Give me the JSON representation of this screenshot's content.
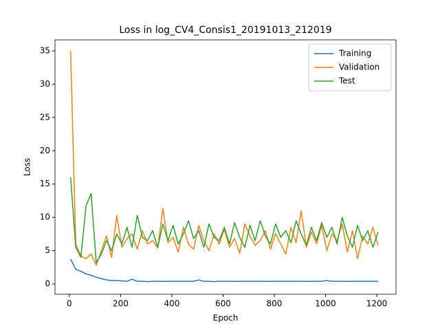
{
  "chart_data": {
    "type": "line",
    "title": "Loss in log_CV4_Consis1_20191013_212019",
    "xlabel": "Epoch",
    "ylabel": "Loss",
    "x": [
      5,
      25,
      45,
      65,
      85,
      105,
      125,
      145,
      165,
      185,
      205,
      225,
      245,
      265,
      285,
      305,
      325,
      345,
      365,
      385,
      405,
      425,
      445,
      465,
      485,
      505,
      525,
      545,
      565,
      585,
      605,
      625,
      645,
      665,
      685,
      705,
      725,
      745,
      765,
      785,
      805,
      825,
      845,
      865,
      885,
      905,
      925,
      945,
      965,
      985,
      1005,
      1025,
      1045,
      1065,
      1085,
      1105,
      1125,
      1145,
      1165,
      1185,
      1205
    ],
    "series": [
      {
        "name": "Training",
        "color": "#1f77b4",
        "values": [
          3.7,
          2.2,
          1.9,
          1.5,
          1.3,
          1.0,
          0.8,
          0.6,
          0.5,
          0.5,
          0.45,
          0.4,
          0.7,
          0.4,
          0.4,
          0.35,
          0.4,
          0.4,
          0.38,
          0.4,
          0.4,
          0.4,
          0.4,
          0.4,
          0.4,
          0.6,
          0.4,
          0.4,
          0.35,
          0.4,
          0.4,
          0.4,
          0.38,
          0.4,
          0.4,
          0.4,
          0.4,
          0.4,
          0.4,
          0.38,
          0.4,
          0.4,
          0.4,
          0.4,
          0.4,
          0.4,
          0.38,
          0.4,
          0.4,
          0.4,
          0.5,
          0.4,
          0.4,
          0.4,
          0.38,
          0.4,
          0.4,
          0.4,
          0.4,
          0.4,
          0.4
        ]
      },
      {
        "name": "Validation",
        "color": "#ff7f0e",
        "values": [
          35,
          6.0,
          4.2,
          3.8,
          4.5,
          2.8,
          5.0,
          7.2,
          4.0,
          10.3,
          5.5,
          6.8,
          7.5,
          5.2,
          8.0,
          6.0,
          6.5,
          5.4,
          11.3,
          6.2,
          7.0,
          4.8,
          8.5,
          6.0,
          5.2,
          8.8,
          6.5,
          5.0,
          7.5,
          6.0,
          8.2,
          5.5,
          6.8,
          4.6,
          9.0,
          7.2,
          5.8,
          6.5,
          8.0,
          5.2,
          7.6,
          6.0,
          4.5,
          8.5,
          6.2,
          11.0,
          5.5,
          7.8,
          6.0,
          8.8,
          5.0,
          7.5,
          6.5,
          9.0,
          4.8,
          8.0,
          3.8,
          7.2,
          6.0,
          8.5,
          5.8
        ]
      },
      {
        "name": "Test",
        "color": "#2ca02c",
        "values": [
          16,
          5.5,
          4.0,
          11.7,
          13.6,
          3.2,
          4.5,
          6.5,
          5.0,
          7.5,
          6.0,
          8.5,
          5.5,
          10.3,
          7.0,
          6.5,
          8.0,
          5.5,
          9.0,
          6.5,
          8.8,
          6.0,
          7.5,
          9.5,
          6.8,
          8.0,
          5.5,
          9.0,
          7.0,
          6.5,
          8.5,
          6.0,
          9.2,
          7.0,
          5.5,
          8.8,
          6.5,
          9.5,
          7.2,
          6.0,
          9.0,
          7.0,
          8.0,
          6.2,
          9.5,
          7.5,
          5.8,
          8.5,
          6.5,
          9.2,
          7.0,
          8.5,
          6.0,
          10.0,
          7.2,
          5.5,
          8.8,
          6.5,
          8.0,
          5.5,
          7.8
        ]
      }
    ],
    "xlim": [
      -56,
      1275
    ],
    "ylim": [
      -1.55,
      36.65
    ],
    "xticks": [
      0,
      200,
      400,
      600,
      800,
      1000,
      1200
    ],
    "yticks": [
      0,
      5,
      10,
      15,
      20,
      25,
      30,
      35
    ],
    "legend": "upper right"
  }
}
